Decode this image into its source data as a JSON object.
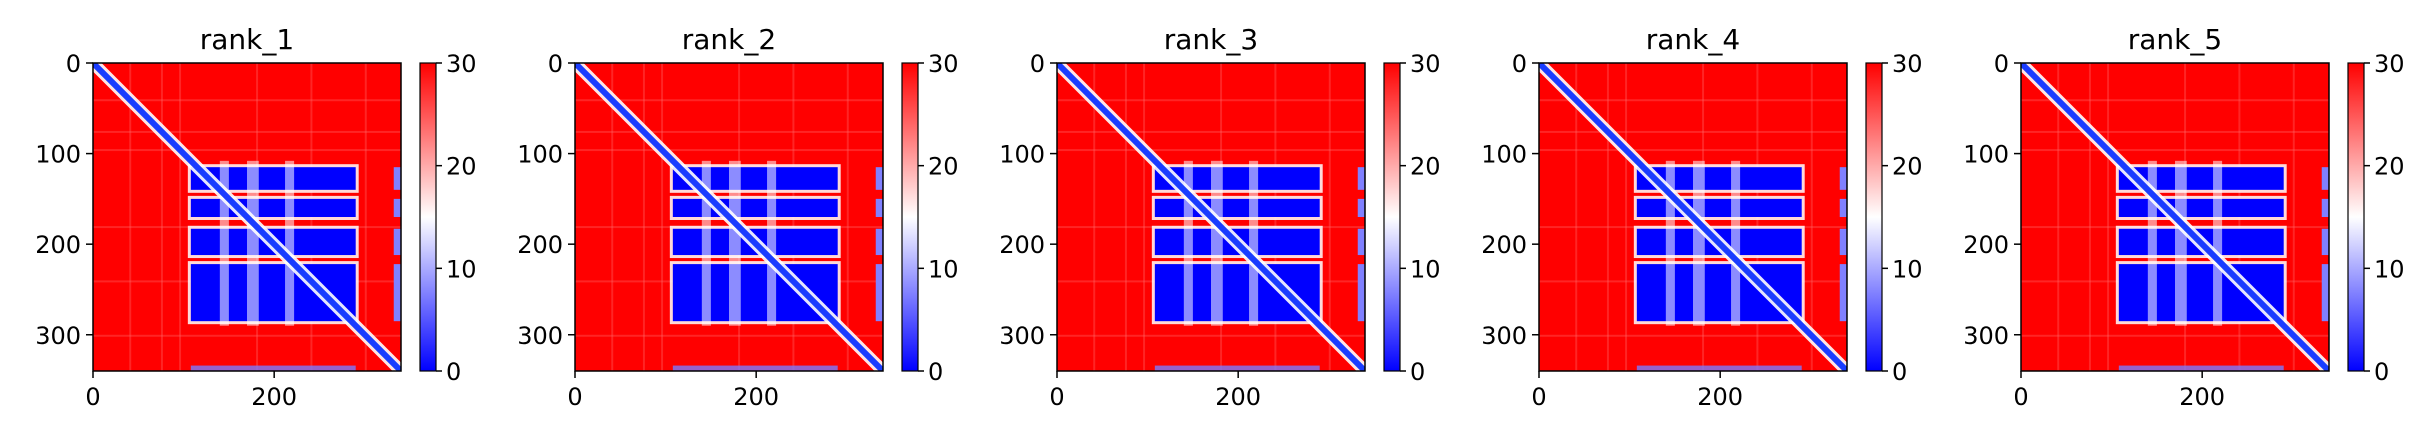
{
  "chart_data": [
    {
      "type": "heatmap",
      "title": "rank_1",
      "xlabel": "",
      "ylabel": "",
      "x_ticks": [
        0,
        200
      ],
      "y_ticks": [
        0,
        100,
        200,
        300
      ],
      "xlim": [
        0,
        340
      ],
      "ylim": [
        340,
        0
      ],
      "matrix_size": 340,
      "value_range": [
        0,
        30
      ],
      "colorbar_ticks": [
        0,
        10,
        20,
        30
      ],
      "colormap": "bwr",
      "low_value_blocks": [
        [
          115,
          140
        ],
        [
          150,
          170
        ],
        [
          183,
          212
        ],
        [
          222,
          285
        ]
      ],
      "block_x_extent": [
        108,
        290
      ]
    },
    {
      "type": "heatmap",
      "title": "rank_2",
      "xlabel": "",
      "ylabel": "",
      "x_ticks": [
        0,
        200
      ],
      "y_ticks": [
        0,
        100,
        200,
        300
      ],
      "xlim": [
        0,
        340
      ],
      "ylim": [
        340,
        0
      ],
      "matrix_size": 340,
      "value_range": [
        0,
        30
      ],
      "colorbar_ticks": [
        0,
        10,
        20,
        30
      ],
      "colormap": "bwr",
      "low_value_blocks": [
        [
          115,
          140
        ],
        [
          150,
          170
        ],
        [
          183,
          212
        ],
        [
          222,
          285
        ]
      ],
      "block_x_extent": [
        108,
        290
      ]
    },
    {
      "type": "heatmap",
      "title": "rank_3",
      "xlabel": "",
      "ylabel": "",
      "x_ticks": [
        0,
        200
      ],
      "y_ticks": [
        0,
        100,
        200,
        300
      ],
      "xlim": [
        0,
        340
      ],
      "ylim": [
        340,
        0
      ],
      "matrix_size": 340,
      "value_range": [
        0,
        30
      ],
      "colorbar_ticks": [
        0,
        10,
        20,
        30
      ],
      "colormap": "bwr",
      "low_value_blocks": [
        [
          115,
          140
        ],
        [
          150,
          170
        ],
        [
          183,
          212
        ],
        [
          222,
          285
        ]
      ],
      "block_x_extent": [
        108,
        290
      ]
    },
    {
      "type": "heatmap",
      "title": "rank_4",
      "xlabel": "",
      "ylabel": "",
      "x_ticks": [
        0,
        200
      ],
      "y_ticks": [
        0,
        100,
        200,
        300
      ],
      "xlim": [
        0,
        340
      ],
      "ylim": [
        340,
        0
      ],
      "matrix_size": 340,
      "value_range": [
        0,
        30
      ],
      "colorbar_ticks": [
        0,
        10,
        20,
        30
      ],
      "colormap": "bwr",
      "low_value_blocks": [
        [
          115,
          140
        ],
        [
          150,
          170
        ],
        [
          183,
          212
        ],
        [
          222,
          285
        ]
      ],
      "block_x_extent": [
        108,
        290
      ]
    },
    {
      "type": "heatmap",
      "title": "rank_5",
      "xlabel": "",
      "ylabel": "",
      "x_ticks": [
        0,
        200
      ],
      "y_ticks": [
        0,
        100,
        200,
        300
      ],
      "xlim": [
        0,
        340
      ],
      "ylim": [
        340,
        0
      ],
      "matrix_size": 340,
      "value_range": [
        0,
        30
      ],
      "colorbar_ticks": [
        0,
        10,
        20,
        30
      ],
      "colormap": "bwr",
      "low_value_blocks": [
        [
          115,
          140
        ],
        [
          150,
          170
        ],
        [
          183,
          212
        ],
        [
          222,
          285
        ]
      ],
      "block_x_extent": [
        108,
        290
      ]
    }
  ],
  "colors": {
    "high": "#ff0000",
    "mid": "#ffffff",
    "low": "#0000ff",
    "diagonal": "#1a3cff"
  }
}
